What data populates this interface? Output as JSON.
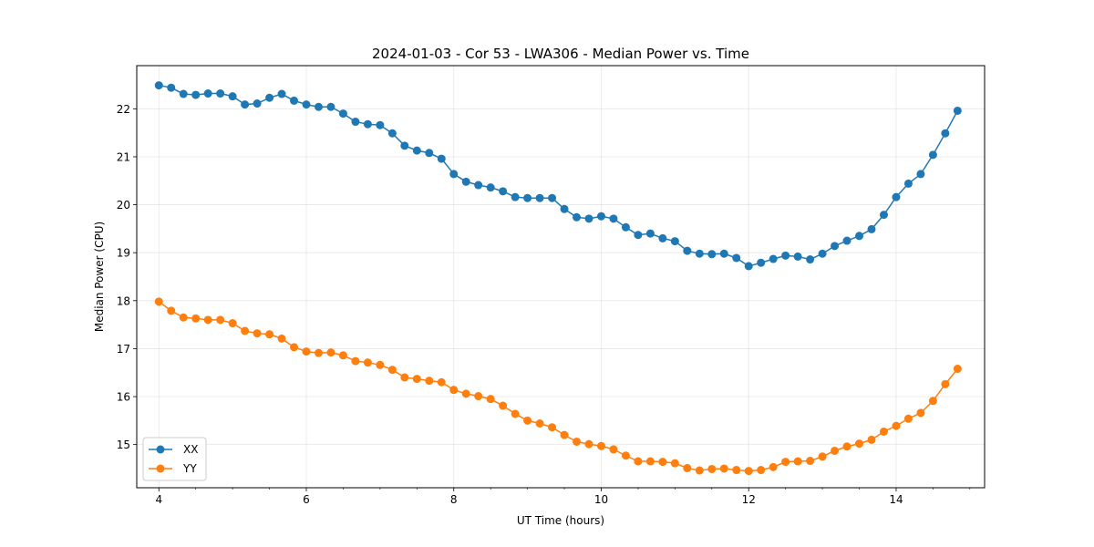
{
  "chart_data": {
    "type": "line",
    "title": "2024-01-03 - Cor 53 - LWA306 - Median Power vs. Time",
    "xlabel": "UT Time (hours)",
    "ylabel": "Median Power (CPU)",
    "xlim": [
      3.7,
      15.2
    ],
    "ylim": [
      14.1,
      22.9
    ],
    "xticks": [
      4,
      6,
      8,
      10,
      12,
      14
    ],
    "xtick_labels": [
      "4",
      "6",
      "8",
      "10",
      "12",
      "14"
    ],
    "xminor_step": 0.5,
    "yticks": [
      15,
      16,
      17,
      18,
      19,
      20,
      21,
      22
    ],
    "ytick_labels": [
      "15",
      "16",
      "17",
      "18",
      "19",
      "20",
      "21",
      "22"
    ],
    "grid": true,
    "legend": "lower-left",
    "x": [
      4.0,
      4.1667,
      4.3333,
      4.5,
      4.6667,
      4.8333,
      5.0,
      5.1667,
      5.3333,
      5.5,
      5.6667,
      5.8333,
      6.0,
      6.1667,
      6.3333,
      6.5,
      6.6667,
      6.8333,
      7.0,
      7.1667,
      7.3333,
      7.5,
      7.6667,
      7.8333,
      8.0,
      8.1667,
      8.3333,
      8.5,
      8.6667,
      8.8333,
      9.0,
      9.1667,
      9.3333,
      9.5,
      9.6667,
      9.8333,
      10.0,
      10.1667,
      10.3333,
      10.5,
      10.6667,
      10.8333,
      11.0,
      11.1667,
      11.3333,
      11.5,
      11.6667,
      11.8333,
      12.0,
      12.1667,
      12.3333,
      12.5,
      12.6667,
      12.8333,
      13.0,
      13.1667,
      13.3333,
      13.5,
      13.6667,
      13.8333,
      14.0,
      14.1667,
      14.3333,
      14.5,
      14.6667,
      14.8333
    ],
    "series": [
      {
        "name": "XX",
        "color": "#1f77b4",
        "values": [
          22.49,
          22.44,
          22.31,
          22.29,
          22.32,
          22.32,
          22.26,
          22.09,
          22.11,
          22.23,
          22.31,
          22.17,
          22.09,
          22.04,
          22.04,
          21.9,
          21.73,
          21.68,
          21.66,
          21.49,
          21.23,
          21.13,
          21.08,
          20.96,
          20.64,
          20.48,
          20.41,
          20.36,
          20.28,
          20.16,
          20.14,
          20.14,
          20.14,
          19.91,
          19.74,
          19.71,
          19.76,
          19.71,
          19.53,
          19.37,
          19.4,
          19.3,
          19.24,
          19.04,
          18.98,
          18.97,
          18.98,
          18.89,
          18.72,
          18.79,
          18.87,
          18.94,
          18.92,
          18.86,
          18.98,
          19.14,
          19.25,
          19.35,
          19.49,
          19.79,
          20.16,
          20.44,
          20.64,
          21.04,
          21.49,
          21.96
        ]
      },
      {
        "name": "YY",
        "color": "#ff7f0e",
        "values": [
          17.98,
          17.79,
          17.65,
          17.63,
          17.6,
          17.6,
          17.53,
          17.37,
          17.32,
          17.3,
          17.21,
          17.03,
          16.94,
          16.91,
          16.92,
          16.86,
          16.74,
          16.71,
          16.66,
          16.56,
          16.4,
          16.37,
          16.33,
          16.3,
          16.14,
          16.06,
          16.01,
          15.95,
          15.81,
          15.64,
          15.5,
          15.44,
          15.36,
          15.2,
          15.06,
          15.01,
          14.97,
          14.9,
          14.77,
          14.65,
          14.65,
          14.64,
          14.61,
          14.51,
          14.46,
          14.49,
          14.5,
          14.47,
          14.45,
          14.47,
          14.53,
          14.64,
          14.65,
          14.66,
          14.75,
          14.87,
          14.96,
          15.02,
          15.1,
          15.27,
          15.39,
          15.54,
          15.66,
          15.91,
          16.26,
          16.58
        ]
      }
    ]
  }
}
